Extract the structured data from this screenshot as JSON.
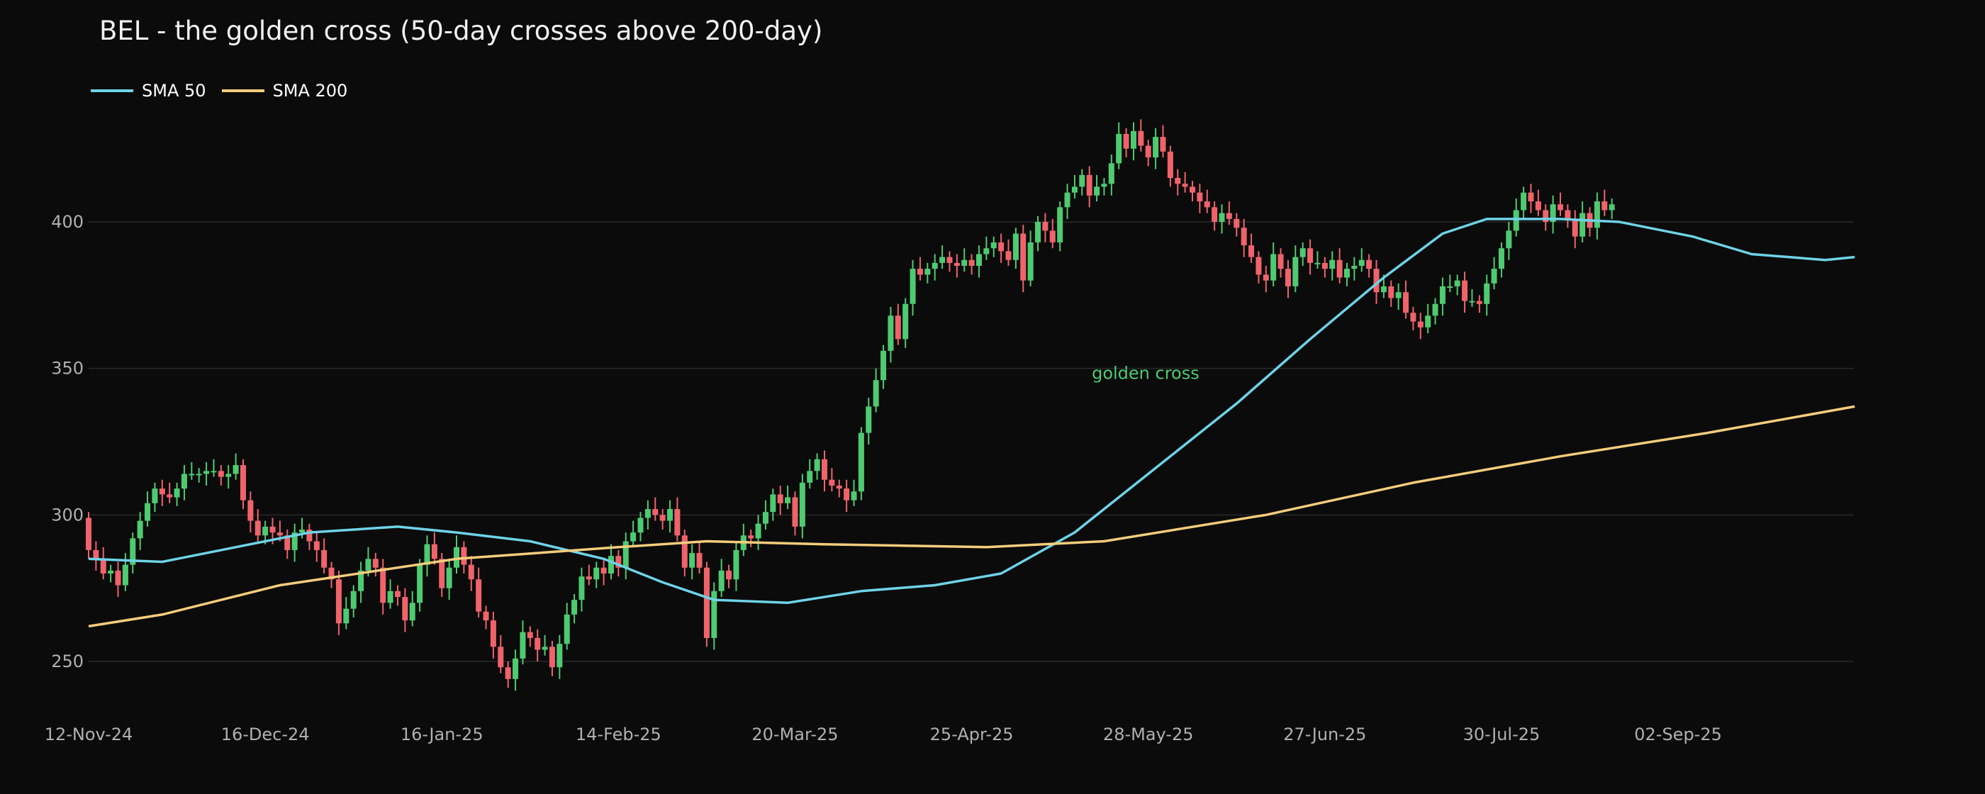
{
  "chart_data": {
    "type": "candlestick",
    "title": "BEL - the golden cross (50-day crosses above 200-day)",
    "xlabel": "",
    "ylabel": "",
    "ylim": [
      238,
      440
    ],
    "yticks": [
      250,
      300,
      350,
      400
    ],
    "xticks": [
      {
        "label": "12-Nov-24",
        "day": 0
      },
      {
        "label": "16-Dec-24",
        "day": 24
      },
      {
        "label": "16-Jan-25",
        "day": 48
      },
      {
        "label": "14-Feb-25",
        "day": 72
      },
      {
        "label": "20-Mar-25",
        "day": 96
      },
      {
        "label": "25-Apr-25",
        "day": 120
      },
      {
        "label": "28-May-25",
        "day": 144
      },
      {
        "label": "27-Jun-25",
        "day": 168
      },
      {
        "label": "30-Jul-25",
        "day": 192
      },
      {
        "label": "02-Sep-25",
        "day": 216
      }
    ],
    "grid": true,
    "legend_position": "top-left",
    "colors": {
      "background": "#0b0b0b",
      "grid": "#2a2a2a",
      "up": "#4ecb71",
      "down": "#f0636b",
      "sma50": "#6fd3e8",
      "sma200": "#f6cd7c",
      "tick": "#b0b0b0",
      "annotation": "#4ecb71"
    },
    "series": [
      {
        "name": "SMA 50",
        "points": [
          [
            0,
            285
          ],
          [
            10,
            284
          ],
          [
            20,
            289
          ],
          [
            30,
            294
          ],
          [
            42,
            296
          ],
          [
            50,
            294
          ],
          [
            60,
            291
          ],
          [
            70,
            285
          ],
          [
            78,
            277
          ],
          [
            85,
            271
          ],
          [
            95,
            270
          ],
          [
            105,
            274
          ],
          [
            115,
            276
          ],
          [
            124,
            280
          ],
          [
            134,
            294
          ],
          [
            146,
            318
          ],
          [
            156,
            338
          ],
          [
            166,
            360
          ],
          [
            176,
            381
          ],
          [
            184,
            396
          ],
          [
            190,
            401
          ],
          [
            200,
            401
          ],
          [
            208,
            400
          ],
          [
            218,
            395
          ],
          [
            226,
            389
          ],
          [
            236,
            387
          ],
          [
            240,
            388
          ]
        ]
      },
      {
        "name": "SMA 200",
        "points": [
          [
            0,
            262
          ],
          [
            10,
            266
          ],
          [
            26,
            276
          ],
          [
            50,
            285
          ],
          [
            72,
            289
          ],
          [
            84,
            291
          ],
          [
            100,
            290
          ],
          [
            122,
            289
          ],
          [
            138,
            291
          ],
          [
            160,
            300
          ],
          [
            180,
            311
          ],
          [
            200,
            320
          ],
          [
            220,
            328
          ],
          [
            240,
            337
          ]
        ]
      }
    ],
    "annotations": [
      {
        "text": "golden cross",
        "day": 134,
        "value": 343
      }
    ],
    "candles": {
      "start": 299,
      "closes": [
        288,
        285,
        280,
        281,
        276,
        283,
        292,
        298,
        304,
        309,
        307,
        306,
        309,
        314,
        314,
        314,
        315,
        315,
        313,
        314,
        317,
        305,
        298,
        293,
        296,
        294,
        293,
        288,
        294,
        295,
        291,
        288,
        282,
        278,
        263,
        268,
        274,
        281,
        285,
        282,
        270,
        274,
        272,
        264,
        270,
        283,
        290,
        285,
        275,
        282,
        289,
        283,
        278,
        267,
        264,
        255,
        248,
        244,
        251,
        260,
        258,
        254,
        255,
        248,
        256,
        266,
        271,
        279,
        278,
        282,
        280,
        286,
        282,
        291,
        294,
        299,
        302,
        300,
        298,
        302,
        293,
        282,
        287,
        282,
        258,
        274,
        281,
        278,
        288,
        293,
        292,
        297,
        301,
        307,
        304,
        306,
        296,
        311,
        315,
        319,
        312,
        310,
        309,
        305,
        308,
        328,
        337,
        346,
        356,
        368,
        360,
        372,
        384,
        382,
        384,
        386,
        388,
        386,
        385,
        387,
        385,
        389,
        391,
        393,
        390,
        387,
        396,
        380,
        393,
        400,
        397,
        393,
        405,
        410,
        412,
        416,
        409,
        412,
        413,
        420,
        430,
        425,
        431,
        426,
        422,
        429,
        424,
        415,
        413,
        412,
        410,
        407,
        405,
        400,
        403,
        401,
        398,
        392,
        388,
        382,
        380,
        389,
        384,
        378,
        388,
        391,
        386,
        386,
        384,
        387,
        381,
        384,
        385,
        387,
        384,
        376,
        378,
        374,
        376,
        369,
        366,
        364,
        368,
        372,
        378,
        378,
        380,
        373,
        373,
        372,
        379,
        384,
        391,
        397,
        404,
        410,
        407,
        404,
        400,
        406,
        404,
        401,
        395,
        403,
        398,
        407,
        404,
        406
      ]
    }
  }
}
